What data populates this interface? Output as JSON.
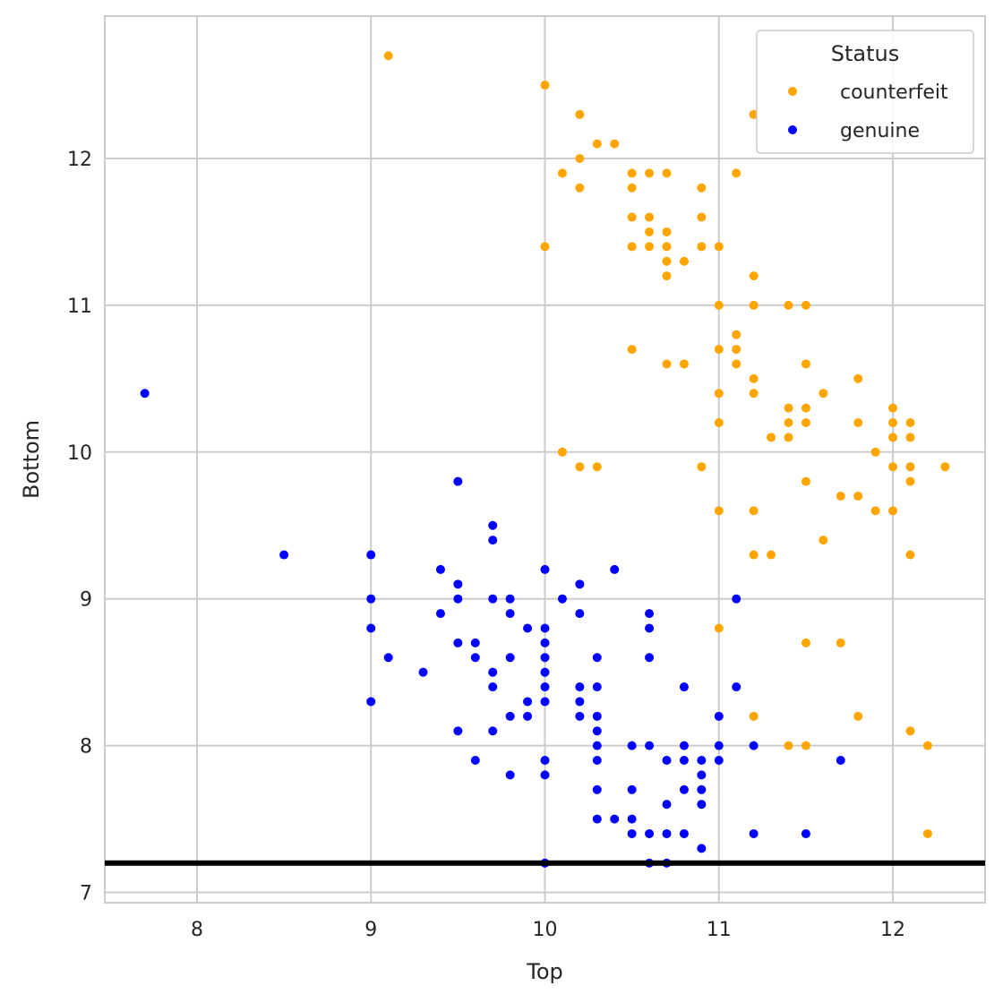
{
  "chart_data": {
    "type": "scatter",
    "xlabel": "Top",
    "ylabel": "Bottom",
    "ylabel_color": "#ff0000",
    "xlim": [
      7.47,
      12.53
    ],
    "ylim": [
      6.93,
      12.97
    ],
    "xticks": [
      8,
      9,
      10,
      11,
      12
    ],
    "yticks": [
      7,
      8,
      9,
      10,
      11,
      12
    ],
    "grid": true,
    "hline": {
      "y": 7.2,
      "color": "#000000"
    },
    "legend": {
      "title": "Status",
      "placement": "top-right"
    },
    "series": [
      {
        "name": "counterfeit",
        "color": "#ffa500",
        "points": [
          [
            9.1,
            12.7
          ],
          [
            10.0,
            12.5
          ],
          [
            10.2,
            12.3
          ],
          [
            10.2,
            12.0
          ],
          [
            10.3,
            12.1
          ],
          [
            10.4,
            12.1
          ],
          [
            10.1,
            11.9
          ],
          [
            10.2,
            11.8
          ],
          [
            10.0,
            11.4
          ],
          [
            10.5,
            11.9
          ],
          [
            10.6,
            11.9
          ],
          [
            10.7,
            11.9
          ],
          [
            10.5,
            11.8
          ],
          [
            10.5,
            11.6
          ],
          [
            10.6,
            11.6
          ],
          [
            10.6,
            11.5
          ],
          [
            10.7,
            11.5
          ],
          [
            10.5,
            11.4
          ],
          [
            10.6,
            11.4
          ],
          [
            10.7,
            11.4
          ],
          [
            10.8,
            11.3
          ],
          [
            10.7,
            11.3
          ],
          [
            10.7,
            11.2
          ],
          [
            10.9,
            11.8
          ],
          [
            10.9,
            11.6
          ],
          [
            10.9,
            11.4
          ],
          [
            11.0,
            11.4
          ],
          [
            11.1,
            11.9
          ],
          [
            11.2,
            12.3
          ],
          [
            11.2,
            11.2
          ],
          [
            11.0,
            11.0
          ],
          [
            11.2,
            11.0
          ],
          [
            11.4,
            11.0
          ],
          [
            11.5,
            11.0
          ],
          [
            11.1,
            10.8
          ],
          [
            11.1,
            10.7
          ],
          [
            11.0,
            10.7
          ],
          [
            10.5,
            10.7
          ],
          [
            10.7,
            10.6
          ],
          [
            10.8,
            10.6
          ],
          [
            11.1,
            10.6
          ],
          [
            11.5,
            10.6
          ],
          [
            11.2,
            10.5
          ],
          [
            11.8,
            10.5
          ],
          [
            11.0,
            10.4
          ],
          [
            11.2,
            10.4
          ],
          [
            11.6,
            10.4
          ],
          [
            11.4,
            10.3
          ],
          [
            11.5,
            10.3
          ],
          [
            12.0,
            10.3
          ],
          [
            11.0,
            10.2
          ],
          [
            11.4,
            10.2
          ],
          [
            11.5,
            10.2
          ],
          [
            11.8,
            10.2
          ],
          [
            12.0,
            10.2
          ],
          [
            12.1,
            10.2
          ],
          [
            11.3,
            10.1
          ],
          [
            11.4,
            10.1
          ],
          [
            12.0,
            10.1
          ],
          [
            12.1,
            10.1
          ],
          [
            10.1,
            10.0
          ],
          [
            11.9,
            10.0
          ],
          [
            10.2,
            9.9
          ],
          [
            10.3,
            9.9
          ],
          [
            10.9,
            9.9
          ],
          [
            12.0,
            9.9
          ],
          [
            12.1,
            9.9
          ],
          [
            12.3,
            9.9
          ],
          [
            11.5,
            9.8
          ],
          [
            12.1,
            9.8
          ],
          [
            11.7,
            9.7
          ],
          [
            11.8,
            9.7
          ],
          [
            11.0,
            9.6
          ],
          [
            11.2,
            9.6
          ],
          [
            11.9,
            9.6
          ],
          [
            12.0,
            9.6
          ],
          [
            11.6,
            9.4
          ],
          [
            11.2,
            9.3
          ],
          [
            11.3,
            9.3
          ],
          [
            12.1,
            9.3
          ],
          [
            11.0,
            8.8
          ],
          [
            11.5,
            8.7
          ],
          [
            11.7,
            8.7
          ],
          [
            11.2,
            8.2
          ],
          [
            11.8,
            8.2
          ],
          [
            12.1,
            8.1
          ],
          [
            11.4,
            8.0
          ],
          [
            11.5,
            8.0
          ],
          [
            12.2,
            8.0
          ],
          [
            12.2,
            7.4
          ]
        ]
      },
      {
        "name": "genuine",
        "color": "#0000ff",
        "points": [
          [
            7.7,
            10.4
          ],
          [
            9.5,
            9.8
          ],
          [
            8.5,
            9.3
          ],
          [
            9.0,
            9.3
          ],
          [
            9.7,
            9.5
          ],
          [
            9.7,
            9.4
          ],
          [
            9.4,
            9.2
          ],
          [
            10.0,
            9.2
          ],
          [
            10.4,
            9.2
          ],
          [
            9.5,
            9.1
          ],
          [
            10.2,
            9.1
          ],
          [
            9.0,
            9.0
          ],
          [
            9.5,
            9.0
          ],
          [
            9.7,
            9.0
          ],
          [
            9.8,
            9.0
          ],
          [
            10.1,
            9.0
          ],
          [
            11.1,
            9.0
          ],
          [
            9.4,
            8.9
          ],
          [
            9.8,
            8.9
          ],
          [
            10.2,
            8.9
          ],
          [
            10.6,
            8.9
          ],
          [
            9.0,
            8.8
          ],
          [
            9.9,
            8.8
          ],
          [
            10.0,
            8.8
          ],
          [
            10.6,
            8.8
          ],
          [
            9.5,
            8.7
          ],
          [
            9.6,
            8.7
          ],
          [
            10.0,
            8.7
          ],
          [
            9.1,
            8.6
          ],
          [
            9.6,
            8.6
          ],
          [
            9.8,
            8.6
          ],
          [
            10.0,
            8.6
          ],
          [
            10.3,
            8.6
          ],
          [
            10.6,
            8.6
          ],
          [
            9.3,
            8.5
          ],
          [
            9.7,
            8.5
          ],
          [
            10.0,
            8.5
          ],
          [
            9.7,
            8.4
          ],
          [
            10.0,
            8.4
          ],
          [
            10.2,
            8.4
          ],
          [
            10.3,
            8.4
          ],
          [
            10.8,
            8.4
          ],
          [
            11.1,
            8.4
          ],
          [
            9.0,
            8.3
          ],
          [
            9.9,
            8.3
          ],
          [
            10.0,
            8.3
          ],
          [
            10.2,
            8.3
          ],
          [
            9.8,
            8.2
          ],
          [
            9.9,
            8.2
          ],
          [
            10.2,
            8.2
          ],
          [
            10.3,
            8.2
          ],
          [
            11.0,
            8.2
          ],
          [
            9.5,
            8.1
          ],
          [
            9.7,
            8.1
          ],
          [
            10.3,
            8.1
          ],
          [
            10.3,
            8.0
          ],
          [
            10.5,
            8.0
          ],
          [
            10.6,
            8.0
          ],
          [
            10.8,
            8.0
          ],
          [
            11.0,
            8.0
          ],
          [
            11.2,
            8.0
          ],
          [
            9.6,
            7.9
          ],
          [
            10.0,
            7.9
          ],
          [
            10.3,
            7.9
          ],
          [
            10.7,
            7.9
          ],
          [
            10.8,
            7.9
          ],
          [
            10.9,
            7.9
          ],
          [
            11.0,
            7.9
          ],
          [
            11.7,
            7.9
          ],
          [
            9.8,
            7.8
          ],
          [
            10.0,
            7.8
          ],
          [
            10.9,
            7.8
          ],
          [
            10.3,
            7.7
          ],
          [
            10.5,
            7.7
          ],
          [
            10.8,
            7.7
          ],
          [
            10.9,
            7.7
          ],
          [
            10.7,
            7.6
          ],
          [
            10.9,
            7.6
          ],
          [
            10.3,
            7.5
          ],
          [
            10.4,
            7.5
          ],
          [
            10.5,
            7.5
          ],
          [
            10.5,
            7.4
          ],
          [
            10.6,
            7.4
          ],
          [
            10.7,
            7.4
          ],
          [
            10.8,
            7.4
          ],
          [
            11.2,
            7.4
          ],
          [
            11.5,
            7.4
          ],
          [
            10.9,
            7.3
          ],
          [
            10.0,
            7.2
          ],
          [
            10.6,
            7.2
          ],
          [
            10.7,
            7.2
          ]
        ]
      }
    ]
  }
}
